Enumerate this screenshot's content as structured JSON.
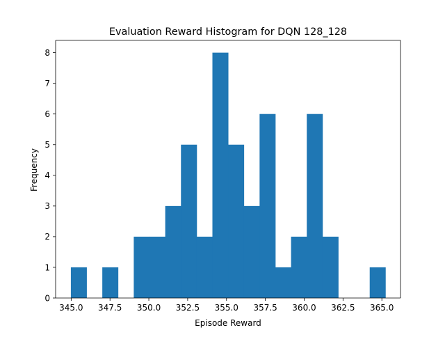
{
  "chart_data": {
    "type": "bar",
    "title": "Evaluation Reward Histogram for DQN 128_128",
    "xlabel": "Episode Reward",
    "ylabel": "Frequency",
    "bar_color": "#1f77b4",
    "bin_start": 344.98,
    "bin_width": 1.0125,
    "values": [
      1,
      0,
      1,
      0,
      2,
      2,
      3,
      5,
      2,
      8,
      5,
      3,
      6,
      1,
      2,
      6,
      2,
      0,
      0,
      1
    ],
    "xlim": [
      344.0,
      366.2
    ],
    "ylim": [
      0,
      8.4
    ],
    "xticks": [
      345.0,
      347.5,
      350.0,
      352.5,
      355.0,
      357.5,
      360.0,
      362.5,
      365.0
    ],
    "xtick_labels": [
      "345.0",
      "347.5",
      "350.0",
      "352.5",
      "355.0",
      "357.5",
      "360.0",
      "362.5",
      "365.0"
    ],
    "yticks": [
      0,
      1,
      2,
      3,
      4,
      5,
      6,
      7,
      8
    ],
    "ytick_labels": [
      "0",
      "1",
      "2",
      "3",
      "4",
      "5",
      "6",
      "7",
      "8"
    ],
    "grid": false,
    "legend": "none"
  }
}
